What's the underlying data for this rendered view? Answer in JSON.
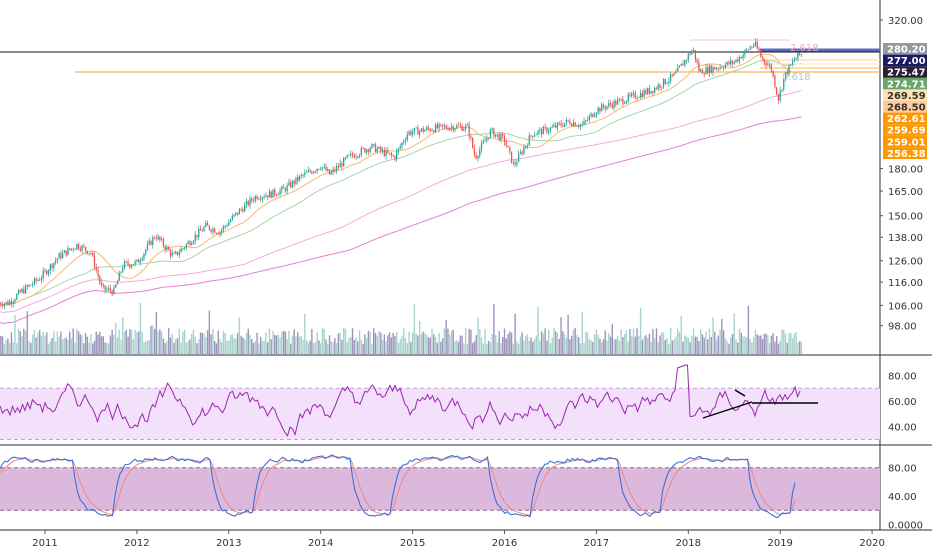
{
  "chart_data": [
    {
      "type": "candlestick",
      "panel": "price",
      "title": "",
      "xlabel": "",
      "ylabel": "",
      "x_ticks": [
        "2011",
        "2012",
        "2013",
        "2014",
        "2015",
        "2016",
        "2017",
        "2018",
        "2019",
        "2020"
      ],
      "y_ticks": [
        98,
        106,
        116,
        126,
        138,
        150,
        165,
        180,
        320
      ],
      "y_tick_labels": [
        "98.00",
        "106.00",
        "116.00",
        "126.00",
        "138.00",
        "150.00",
        "165.00",
        "180.00",
        "320.00"
      ],
      "ylim": [
        92,
        330
      ],
      "log_scale": true,
      "close_series": [
        {
          "t": 2010.6,
          "v": 107
        },
        {
          "t": 2010.75,
          "v": 112
        },
        {
          "t": 2010.95,
          "v": 118
        },
        {
          "t": 2011.15,
          "v": 128
        },
        {
          "t": 2011.35,
          "v": 134
        },
        {
          "t": 2011.5,
          "v": 130
        },
        {
          "t": 2011.62,
          "v": 113
        },
        {
          "t": 2011.75,
          "v": 112
        },
        {
          "t": 2011.85,
          "v": 124
        },
        {
          "t": 2012.0,
          "v": 125
        },
        {
          "t": 2012.2,
          "v": 139
        },
        {
          "t": 2012.4,
          "v": 128
        },
        {
          "t": 2012.6,
          "v": 137
        },
        {
          "t": 2012.75,
          "v": 144
        },
        {
          "t": 2012.9,
          "v": 141
        },
        {
          "t": 2013.1,
          "v": 152
        },
        {
          "t": 2013.3,
          "v": 162
        },
        {
          "t": 2013.45,
          "v": 163
        },
        {
          "t": 2013.6,
          "v": 166
        },
        {
          "t": 2013.8,
          "v": 175
        },
        {
          "t": 2014.0,
          "v": 182
        },
        {
          "t": 2014.1,
          "v": 176
        },
        {
          "t": 2014.3,
          "v": 188
        },
        {
          "t": 2014.55,
          "v": 196
        },
        {
          "t": 2014.8,
          "v": 188
        },
        {
          "t": 2014.95,
          "v": 207
        },
        {
          "t": 2015.2,
          "v": 210
        },
        {
          "t": 2015.45,
          "v": 212
        },
        {
          "t": 2015.6,
          "v": 211
        },
        {
          "t": 2015.68,
          "v": 188
        },
        {
          "t": 2015.85,
          "v": 208
        },
        {
          "t": 2016.0,
          "v": 201
        },
        {
          "t": 2016.1,
          "v": 182
        },
        {
          "t": 2016.3,
          "v": 206
        },
        {
          "t": 2016.5,
          "v": 210
        },
        {
          "t": 2016.7,
          "v": 216
        },
        {
          "t": 2016.85,
          "v": 213
        },
        {
          "t": 2017.0,
          "v": 226
        },
        {
          "t": 2017.3,
          "v": 235
        },
        {
          "t": 2017.6,
          "v": 244
        },
        {
          "t": 2017.85,
          "v": 258
        },
        {
          "t": 2018.05,
          "v": 286
        },
        {
          "t": 2018.12,
          "v": 262
        },
        {
          "t": 2018.3,
          "v": 266
        },
        {
          "t": 2018.5,
          "v": 272
        },
        {
          "t": 2018.72,
          "v": 292
        },
        {
          "t": 2018.8,
          "v": 276
        },
        {
          "t": 2018.9,
          "v": 266
        },
        {
          "t": 2018.98,
          "v": 236
        },
        {
          "t": 2019.05,
          "v": 258
        },
        {
          "t": 2019.15,
          "v": 274
        },
        {
          "t": 2019.22,
          "v": 280
        }
      ],
      "price_labels": [
        {
          "text": "280.20",
          "value": 280.2,
          "bg": "#9598a1",
          "fg": "#ffffff"
        },
        {
          "text": "277.00",
          "value": 277.0,
          "bg": "#1a1a66",
          "fg": "#ffffff"
        },
        {
          "text": "275.47",
          "value": 275.47,
          "bg": "#2b1f33",
          "fg": "#ffffff"
        },
        {
          "text": "274.71",
          "value": 274.71,
          "bg": "#6aa56a",
          "fg": "#ffffff"
        },
        {
          "text": "269.59",
          "value": 269.59,
          "bg": "#ffe0b2",
          "fg": "#333333"
        },
        {
          "text": "268.50",
          "value": 268.5,
          "bg": "#ffcc99",
          "fg": "#333333"
        },
        {
          "text": "262.61",
          "value": 262.61,
          "bg": "#ff9800",
          "fg": "#ffffff"
        },
        {
          "text": "259.69",
          "value": 259.69,
          "bg": "#ff9800",
          "fg": "#ffffff"
        },
        {
          "text": "259.01",
          "value": 259.01,
          "bg": "#ff9800",
          "fg": "#ffffff"
        },
        {
          "text": "256.38",
          "value": 256.38,
          "bg": "#ff9800",
          "fg": "#ffffff"
        }
      ],
      "fib_labels": [
        {
          "text": "2.618",
          "color": "#f4a6c8"
        },
        {
          "text": "0.618",
          "color": "#9fd3d0"
        }
      ],
      "colors": {
        "up": "#26a69a",
        "down": "#ef5350",
        "ma_short": "#f5b872",
        "ma_mid": "#a5d6a7",
        "ma_long": "#e57fd6",
        "orange_line": "#f7b55a",
        "black_line": "#000000"
      }
    },
    {
      "type": "line",
      "panel": "rsi",
      "y_ticks": [
        40,
        60,
        80
      ],
      "y_tick_labels": [
        "40.00",
        "60.00",
        "80.00"
      ],
      "ylim": [
        28,
        92
      ],
      "band": [
        30,
        70
      ],
      "colors": {
        "line": "#9c27b0",
        "band_fill": "#f3e0fb",
        "band_edge": "#c7a0d8",
        "trend": "#000000"
      }
    },
    {
      "type": "line",
      "panel": "stoch",
      "y_ticks": [
        0,
        40,
        80
      ],
      "y_tick_labels": [
        "0.0000",
        "40.00",
        "80.00"
      ],
      "ylim": [
        -5,
        105
      ],
      "band": [
        20,
        80
      ],
      "colors": {
        "k": "#3f6fd6",
        "d": "#e88a8a",
        "band_fill": "#dcb8dc",
        "band_edge": "#8a6a8a"
      }
    }
  ]
}
